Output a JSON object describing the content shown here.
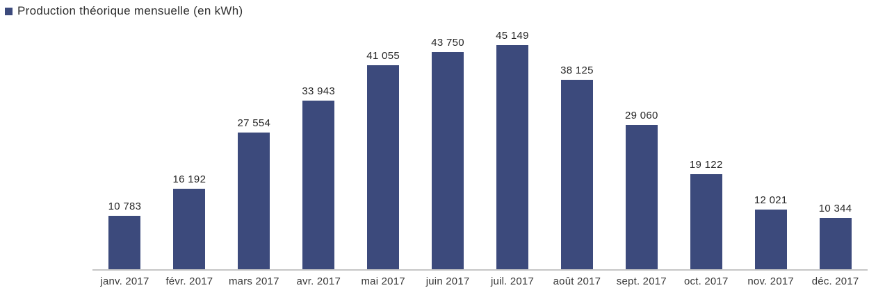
{
  "legend": {
    "label": "Production théorique mensuelle (en kWh)",
    "marker_color": "#3c4a7c"
  },
  "chart_data": {
    "type": "bar",
    "title": "Production théorique mensuelle (en kWh)",
    "unit": "kWh",
    "categories": [
      "janv. 2017",
      "févr. 2017",
      "mars 2017",
      "avr. 2017",
      "mai 2017",
      "juin 2017",
      "juil. 2017",
      "août 2017",
      "sept. 2017",
      "oct. 2017",
      "nov. 2017",
      "déc. 2017"
    ],
    "values": [
      10783,
      16192,
      27554,
      33943,
      41055,
      43750,
      45149,
      38125,
      29060,
      19122,
      12021,
      10344
    ],
    "value_labels": [
      "10 783",
      "16 192",
      "27 554",
      "33 943",
      "41 055",
      "43 750",
      "45 149",
      "38 125",
      "29 060",
      "19 122",
      "12 021",
      "10 344"
    ],
    "xlabel": "",
    "ylabel": "",
    "ylim": [
      0,
      50000
    ],
    "grid": false,
    "data_labels": true,
    "legend_position": "top-left",
    "bar_color": "#3c4a7c",
    "axis_color": "#c6c6c6",
    "text_color": "#2e2e2e"
  }
}
